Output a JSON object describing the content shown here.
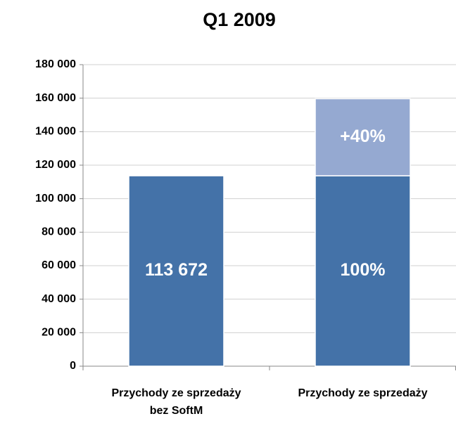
{
  "chart_data": {
    "type": "stacked_bar",
    "title": "Q1 2009",
    "categories": [
      "Przychody ze sprzedaży\nbez SoftM",
      "Przychody ze sprzedaży"
    ],
    "series": [
      {
        "color": "#4472a8",
        "values": [
          113672,
          113672
        ],
        "value_labels": [
          "113 672",
          null
        ]
      },
      {
        "color": "#95a9d1",
        "values": [
          null,
          46000
        ]
      }
    ],
    "annotations": [
      "100%",
      "+40%"
    ],
    "ylim": [
      0,
      180000
    ],
    "yticks": [
      0,
      {
        "value": 20000,
        "label": "20 000"
      },
      {
        "value": 40000,
        "label": "40 000"
      },
      {
        "value": 60000,
        "label": "60 000"
      },
      {
        "value": 80000,
        "label": "80 000"
      },
      {
        "value": 100000,
        "label": "100 000"
      },
      {
        "value": 120000,
        "label": "120 000"
      },
      {
        "value": 140000,
        "label": "140 000"
      },
      {
        "value": 160000,
        "label": "160 000"
      },
      {
        "value": 180000,
        "label": "180 000"
      }
    ],
    "grid": true
  }
}
